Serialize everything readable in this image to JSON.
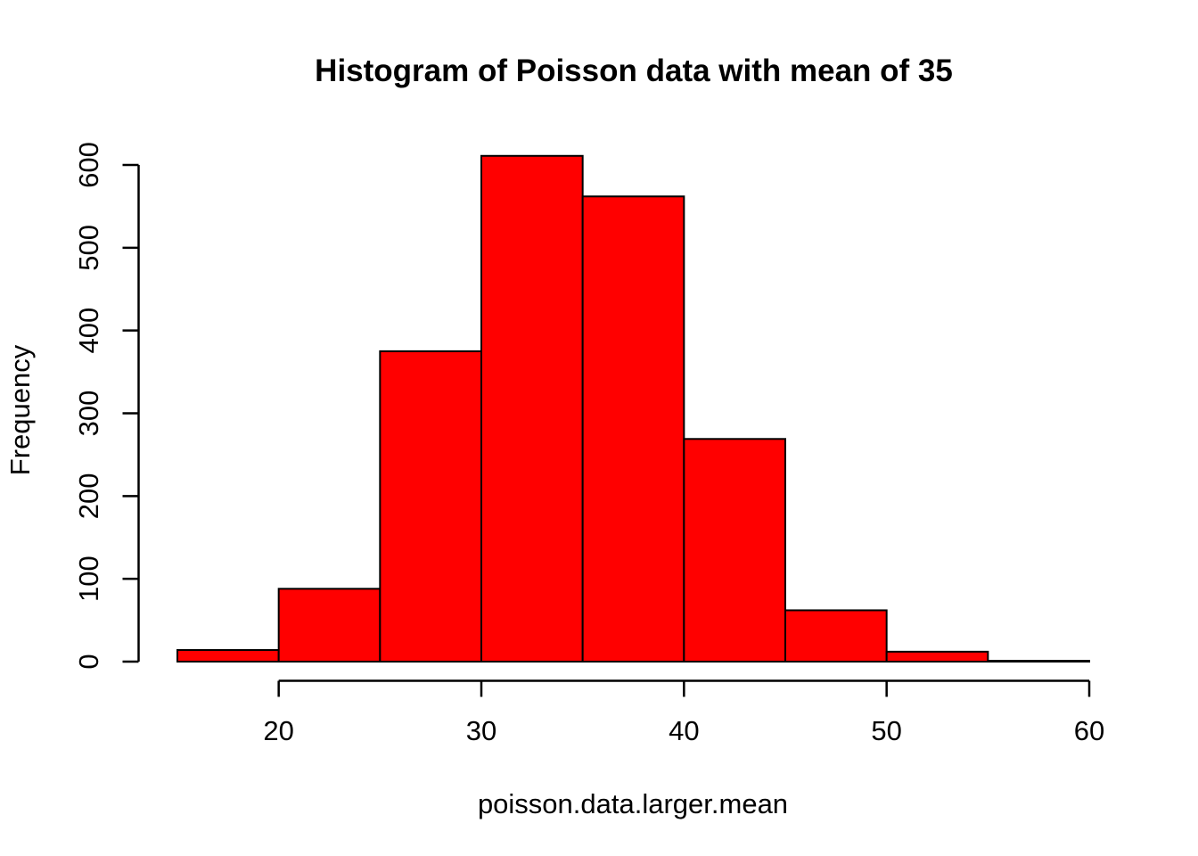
{
  "figure": {
    "background": "#FFFFFF"
  },
  "chart_data": {
    "type": "bar",
    "subtype": "histogram",
    "title": "Histogram of Poisson data with mean of 35",
    "xlabel": "poisson.data.larger.mean",
    "ylabel": "Frequency",
    "bin_edges": [
      15,
      20,
      25,
      30,
      35,
      40,
      45,
      50,
      55,
      60
    ],
    "counts": [
      14,
      88,
      375,
      611,
      562,
      269,
      62,
      12,
      1
    ],
    "x_ticks": [
      20,
      30,
      40,
      50,
      60
    ],
    "y_ticks": [
      0,
      100,
      200,
      300,
      400,
      500,
      600
    ],
    "xlim": [
      15,
      60
    ],
    "ylim": [
      0,
      600
    ],
    "grid": false,
    "legend": null,
    "bar_fill": "#FF0000",
    "bar_stroke": "#000000",
    "axis_color": "#000000",
    "text_color": "#000000"
  }
}
